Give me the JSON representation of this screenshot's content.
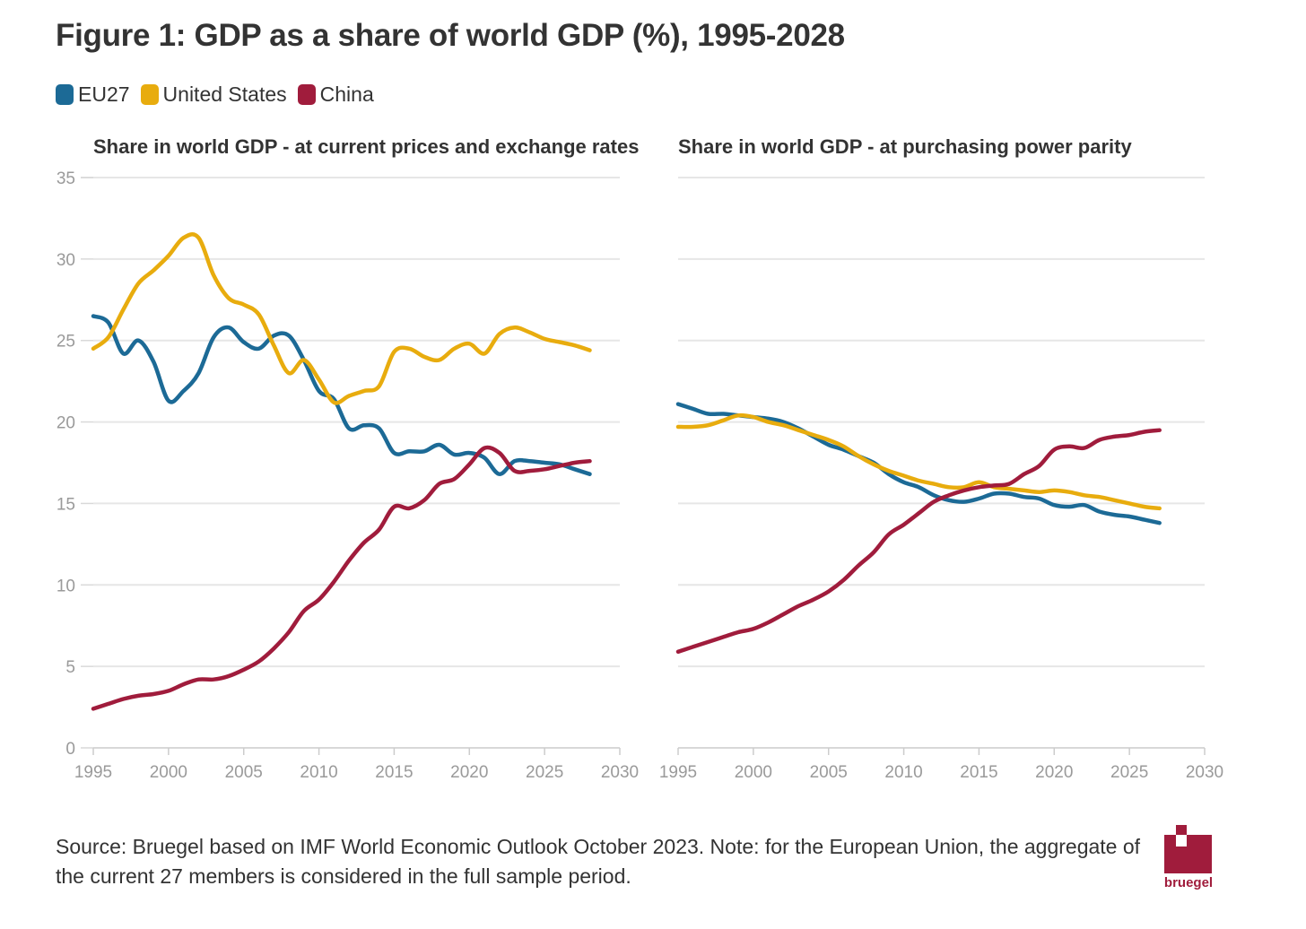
{
  "title": "Figure 1: GDP as a share of world GDP (%), 1995-2028",
  "legend": [
    {
      "label": "EU27",
      "color": "#1c6a96"
    },
    {
      "label": "United States",
      "color": "#e8ac0e"
    },
    {
      "label": "China",
      "color": "#a01c3c"
    }
  ],
  "footer": "Source: Bruegel based on IMF World Economic Outlook October 2023. Note: for the European Union, the aggregate of the current 27 members is considered in the full sample period.",
  "logo": {
    "text": "bruegel",
    "icon": "bruegel-logo-icon",
    "color": "#a01c3c"
  },
  "chart_data": [
    {
      "type": "line",
      "title": "Share in world GDP - at current prices and exchange rates",
      "xlim": [
        1995,
        2030
      ],
      "ylim": [
        0,
        35
      ],
      "xticks": [
        1995,
        2000,
        2005,
        2010,
        2015,
        2020,
        2025,
        2030
      ],
      "yticks": [
        0,
        5,
        10,
        15,
        20,
        25,
        30,
        35
      ],
      "grid": true,
      "x": [
        1995,
        1996,
        1997,
        1998,
        1999,
        2000,
        2001,
        2002,
        2003,
        2004,
        2005,
        2006,
        2007,
        2008,
        2009,
        2010,
        2011,
        2012,
        2013,
        2014,
        2015,
        2016,
        2017,
        2018,
        2019,
        2020,
        2021,
        2022,
        2023,
        2024,
        2025,
        2026,
        2027,
        2028
      ],
      "series": [
        {
          "name": "EU27",
          "color": "#1c6a96",
          "values": [
            26.5,
            26.1,
            24.2,
            25.0,
            23.7,
            21.3,
            21.9,
            23.0,
            25.2,
            25.8,
            24.9,
            24.5,
            25.3,
            25.3,
            23.8,
            21.9,
            21.4,
            19.6,
            19.8,
            19.6,
            18.1,
            18.2,
            18.2,
            18.6,
            18.0,
            18.1,
            17.8,
            16.8,
            17.6,
            17.6,
            17.5,
            17.4,
            17.1,
            16.8
          ]
        },
        {
          "name": "United States",
          "color": "#e8ac0e",
          "values": [
            24.5,
            25.2,
            26.9,
            28.5,
            29.3,
            30.2,
            31.3,
            31.3,
            29.0,
            27.6,
            27.2,
            26.6,
            24.7,
            23.0,
            23.8,
            22.6,
            21.2,
            21.6,
            21.9,
            22.2,
            24.3,
            24.5,
            24.0,
            23.8,
            24.5,
            24.8,
            24.2,
            25.4,
            25.8,
            25.5,
            25.1,
            24.9,
            24.7,
            24.4
          ]
        },
        {
          "name": "China",
          "color": "#a01c3c",
          "values": [
            2.4,
            2.7,
            3.0,
            3.2,
            3.3,
            3.5,
            3.9,
            4.2,
            4.2,
            4.4,
            4.8,
            5.3,
            6.1,
            7.1,
            8.4,
            9.1,
            10.2,
            11.5,
            12.6,
            13.4,
            14.8,
            14.7,
            15.2,
            16.2,
            16.5,
            17.4,
            18.4,
            18.1,
            17.0,
            17.0,
            17.1,
            17.3,
            17.5,
            17.6
          ]
        }
      ]
    },
    {
      "type": "line",
      "title": "Share in world GDP - at purchasing power parity",
      "xlim": [
        1995,
        2030
      ],
      "ylim": [
        0,
        35
      ],
      "xticks": [
        1995,
        2000,
        2005,
        2010,
        2015,
        2020,
        2025,
        2030
      ],
      "grid": true,
      "x": [
        1995,
        1996,
        1997,
        1998,
        1999,
        2000,
        2001,
        2002,
        2003,
        2004,
        2005,
        2006,
        2007,
        2008,
        2009,
        2010,
        2011,
        2012,
        2013,
        2014,
        2015,
        2016,
        2017,
        2018,
        2019,
        2020,
        2021,
        2022,
        2023,
        2024,
        2025,
        2026,
        2027
      ],
      "series": [
        {
          "name": "EU27",
          "color": "#1c6a96",
          "values": [
            21.1,
            20.8,
            20.5,
            20.5,
            20.4,
            20.3,
            20.2,
            20.0,
            19.6,
            19.1,
            18.6,
            18.3,
            17.9,
            17.5,
            16.8,
            16.3,
            16.0,
            15.5,
            15.2,
            15.1,
            15.3,
            15.6,
            15.6,
            15.4,
            15.3,
            14.9,
            14.8,
            14.9,
            14.5,
            14.3,
            14.2,
            14.0,
            13.8
          ]
        },
        {
          "name": "United States",
          "color": "#e8ac0e",
          "values": [
            19.7,
            19.7,
            19.8,
            20.1,
            20.4,
            20.3,
            20.0,
            19.8,
            19.5,
            19.2,
            18.9,
            18.5,
            17.9,
            17.4,
            17.0,
            16.7,
            16.4,
            16.2,
            16.0,
            16.0,
            16.3,
            16.0,
            15.9,
            15.8,
            15.7,
            15.8,
            15.7,
            15.5,
            15.4,
            15.2,
            15.0,
            14.8,
            14.7
          ]
        },
        {
          "name": "China",
          "color": "#a01c3c",
          "values": [
            5.9,
            6.2,
            6.5,
            6.8,
            7.1,
            7.3,
            7.7,
            8.2,
            8.7,
            9.1,
            9.6,
            10.3,
            11.2,
            12.0,
            13.1,
            13.7,
            14.4,
            15.1,
            15.5,
            15.8,
            16.0,
            16.1,
            16.2,
            16.8,
            17.3,
            18.3,
            18.5,
            18.4,
            18.9,
            19.1,
            19.2,
            19.4,
            19.5
          ]
        }
      ]
    }
  ]
}
